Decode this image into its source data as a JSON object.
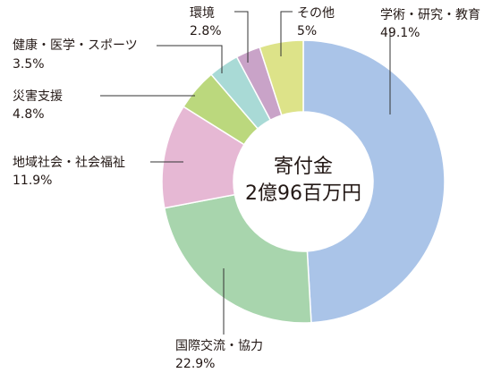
{
  "chart_data": {
    "type": "pie",
    "donut": true,
    "center_title": "寄付金",
    "center_value": "2億96百万円",
    "slices": [
      {
        "label": "学術・研究・教育",
        "value": 49.1,
        "display": "49.1%",
        "color": "#aac4e8"
      },
      {
        "label": "国際交流・協力",
        "value": 22.9,
        "display": "22.9%",
        "color": "#a8d5ad"
      },
      {
        "label": "地域社会・社会福祉",
        "value": 11.9,
        "display": "11.9%",
        "color": "#e6b8d4"
      },
      {
        "label": "災害支援",
        "value": 4.8,
        "display": "4.8%",
        "color": "#bbd87d"
      },
      {
        "label": "健康・医学・スポーツ",
        "value": 3.5,
        "display": "3.5%",
        "color": "#a9dad6"
      },
      {
        "label": "環境",
        "value": 2.8,
        "display": "2.8%",
        "color": "#c9a3c8"
      },
      {
        "label": "その他",
        "value": 5.0,
        "display": "5%",
        "color": "#dde389"
      }
    ]
  }
}
